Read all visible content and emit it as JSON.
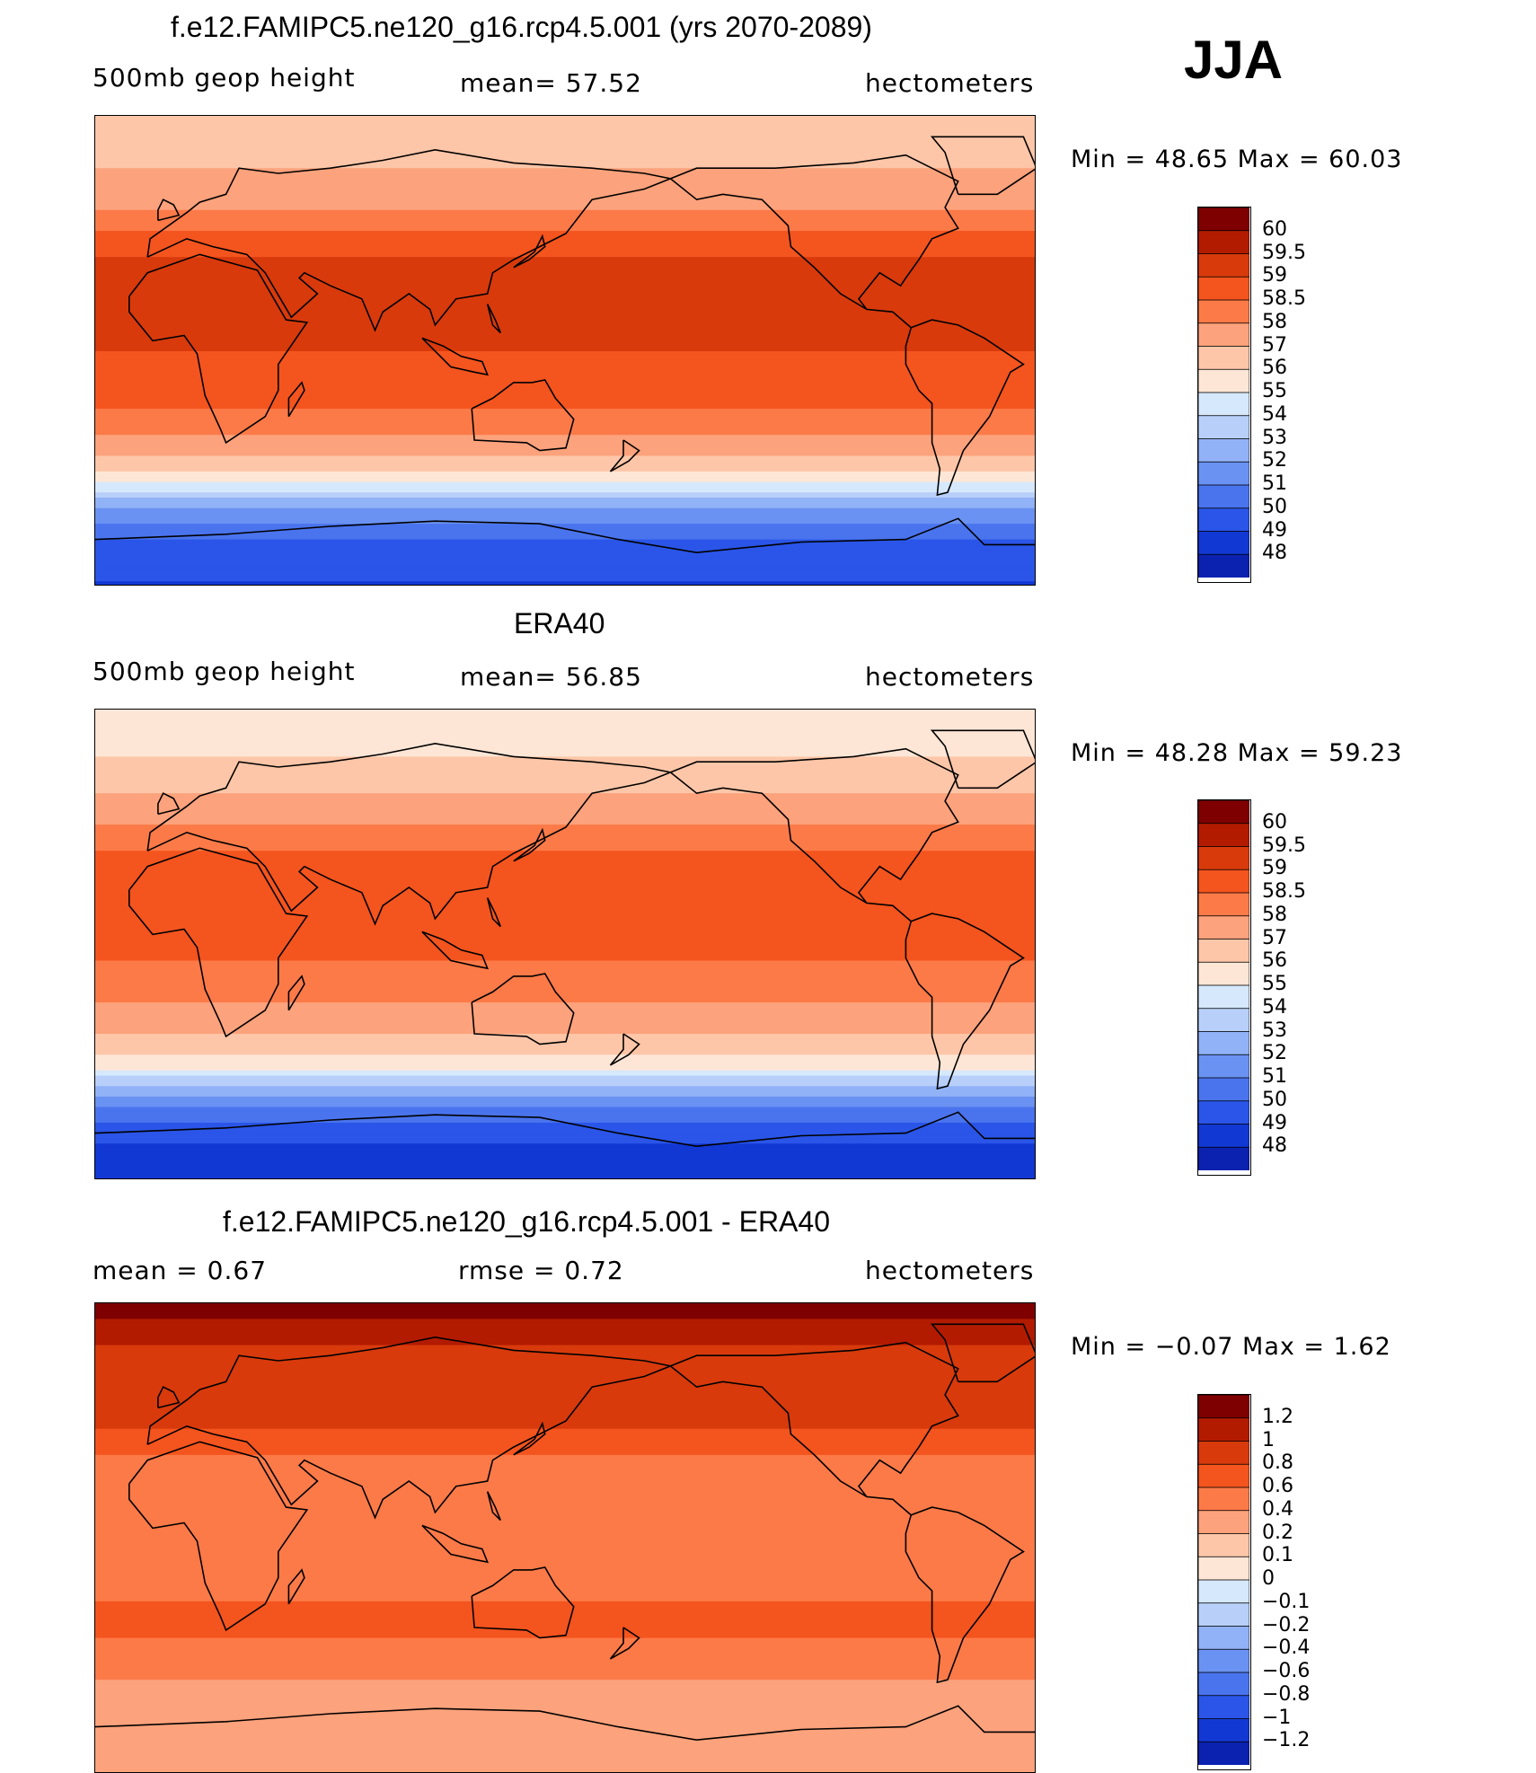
{
  "season": "JJA",
  "panels": [
    {
      "title": "f.e12.FAMIPC5.ne120_g16.rcp4.5.001 (yrs 2070-2089)",
      "left_label": "500mb  geop  height",
      "mid_label": "mean=   57.52",
      "right_label": "hectometers",
      "minmax": "Min  =    48.65  Max  =    60.03"
    },
    {
      "title": "ERA40",
      "left_label": "500mb  geop  height",
      "mid_label": "mean=   56.85",
      "right_label": "hectometers",
      "minmax": "Min  =    48.28  Max  =    59.23"
    },
    {
      "title": "f.e12.FAMIPC5.ne120_g16.rcp4.5.001 - ERA40",
      "left_label": "mean  =     0.67",
      "mid_label": "rmse  =     0.72",
      "right_label": "hectometers",
      "minmax": "Min  =   −0.07  Max  =      1.62"
    }
  ],
  "colors": {
    "palette": [
      "#7f0000",
      "#b31b00",
      "#d83a0c",
      "#f4541e",
      "#fc7a48",
      "#fca27c",
      "#fdc6a8",
      "#fde6d6",
      "#d6e8fb",
      "#b8d0f9",
      "#92b2f7",
      "#6a92f2",
      "#4a74ee",
      "#2a55e8",
      "#1238d4",
      "#0b22b0",
      "#00107c"
    ]
  },
  "chart_data": [
    {
      "type": "heatmap",
      "title": "f.e12.FAMIPC5.ne120_g16.rcp4.5.001 (yrs 2070-2089)",
      "variable": "500mb geop height",
      "units": "hectometers",
      "mean": 57.52,
      "min": 48.65,
      "max": 60.03,
      "colorbar_levels": [
        "60",
        "59.5",
        "59",
        "58.5",
        "58",
        "57",
        "56",
        "55",
        "54",
        "53",
        "52",
        "51",
        "50",
        "49",
        "48"
      ],
      "zonal_profile": {
        "lat": [
          90,
          75,
          60,
          45,
          30,
          15,
          0,
          -15,
          -30,
          -45,
          -60,
          -75,
          -90
        ],
        "value": [
          56.2,
          56.8,
          57.5,
          58.6,
          59.3,
          59.1,
          59.0,
          58.8,
          58.2,
          56.3,
          52.0,
          49.5,
          48.9
        ]
      },
      "projection_extent": {
        "lon": [
          -30,
          330
        ],
        "lat": [
          -90,
          90
        ]
      }
    },
    {
      "type": "heatmap",
      "title": "ERA40",
      "variable": "500mb geop height",
      "units": "hectometers",
      "mean": 56.85,
      "min": 48.28,
      "max": 59.23,
      "colorbar_levels": [
        "60",
        "59.5",
        "59",
        "58.5",
        "58",
        "57",
        "56",
        "55",
        "54",
        "53",
        "52",
        "51",
        "50",
        "49",
        "48"
      ],
      "zonal_profile": {
        "lat": [
          90,
          75,
          60,
          45,
          30,
          15,
          0,
          -15,
          -30,
          -45,
          -60,
          -75,
          -90
        ],
        "value": [
          55.0,
          55.8,
          56.8,
          58.0,
          58.8,
          58.7,
          58.6,
          58.3,
          57.6,
          55.6,
          51.2,
          49.0,
          48.4
        ]
      },
      "projection_extent": {
        "lon": [
          -30,
          330
        ],
        "lat": [
          -90,
          90
        ]
      }
    },
    {
      "type": "heatmap",
      "title": "f.e12.FAMIPC5.ne120_g16.rcp4.5.001 - ERA40",
      "units": "hectometers",
      "mean": 0.67,
      "rmse": 0.72,
      "min": -0.07,
      "max": 1.62,
      "colorbar_levels": [
        "1.2",
        "1",
        "0.8",
        "0.6",
        "0.4",
        "0.2",
        "0.1",
        "0",
        "−0.1",
        "−0.2",
        "−0.4",
        "−0.6",
        "−0.8",
        "−1",
        "−1.2"
      ],
      "zonal_profile": {
        "lat": [
          90,
          75,
          60,
          45,
          30,
          15,
          0,
          -15,
          -30,
          -45,
          -60,
          -75,
          -90
        ],
        "value": [
          1.3,
          1.0,
          0.8,
          0.85,
          0.55,
          0.5,
          0.45,
          0.5,
          0.65,
          0.55,
          0.3,
          0.2,
          0.35
        ]
      },
      "projection_extent": {
        "lon": [
          -30,
          330
        ],
        "lat": [
          -90,
          90
        ]
      }
    }
  ]
}
